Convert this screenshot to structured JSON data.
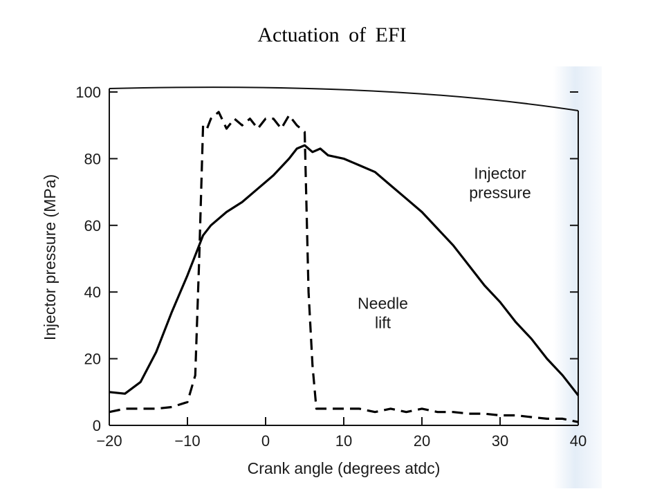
{
  "slide": {
    "title": "Actuation  of EFI"
  },
  "chart_data": {
    "type": "line",
    "title": "",
    "xlabel": "Crank angle (degrees atdc)",
    "ylabel": "Injector pressure (MPa)",
    "xlim": [
      -20,
      40
    ],
    "ylim": [
      0,
      100
    ],
    "x_ticks": [
      -20,
      -10,
      0,
      10,
      20,
      30,
      40
    ],
    "x_tick_labels": [
      "−20",
      "−10",
      "0",
      "10",
      "20",
      "30",
      "40"
    ],
    "y_ticks": [
      0,
      20,
      40,
      60,
      80,
      100
    ],
    "y_tick_labels": [
      "0",
      "20",
      "40",
      "60",
      "80",
      "100"
    ],
    "grid": false,
    "series": [
      {
        "name": "Injector pressure",
        "style": "solid",
        "color": "#000000",
        "x": [
          -20,
          -18,
          -16,
          -14,
          -12,
          -10,
          -8,
          -7,
          -5,
          -3,
          -1,
          1,
          3,
          4,
          5,
          6,
          7,
          8,
          10,
          12,
          14,
          16,
          18,
          20,
          22,
          24,
          26,
          28,
          30,
          32,
          34,
          36,
          38,
          40
        ],
        "y": [
          10,
          9.5,
          13,
          22,
          34,
          45,
          57,
          60,
          64,
          67,
          71,
          75,
          80,
          83,
          84,
          82,
          83,
          81,
          80,
          78,
          76,
          72,
          68,
          64,
          59,
          54,
          48,
          42,
          37,
          31,
          26,
          20,
          15,
          9
        ]
      },
      {
        "name": "Needle lift",
        "style": "dashed",
        "color": "#000000",
        "x": [
          -20,
          -18,
          -16,
          -14,
          -12,
          -10,
          -9,
          -8.5,
          -8,
          -7.5,
          -7,
          -6,
          -5,
          -4,
          -3,
          -2,
          -1,
          0,
          1,
          2,
          3,
          4,
          5,
          5.5,
          6,
          6.5,
          7,
          8,
          10,
          12,
          14,
          16,
          18,
          20,
          22,
          24,
          26,
          28,
          30,
          32,
          34,
          36,
          38,
          40
        ],
        "y": [
          4,
          5,
          5,
          5,
          5.5,
          7,
          15,
          50,
          90,
          89,
          92,
          94,
          89,
          92,
          90,
          92,
          89,
          92,
          92,
          89,
          93,
          90,
          88,
          40,
          18,
          5,
          5,
          5,
          5,
          5,
          4,
          5,
          4,
          5,
          4,
          4,
          3.5,
          3.5,
          3,
          3,
          2.5,
          2,
          2,
          1
        ]
      }
    ],
    "annotations": [
      {
        "text": [
          "Injector",
          "pressure"
        ],
        "x": 30,
        "y": 74
      },
      {
        "text": [
          "Needle",
          "lift"
        ],
        "x": 15,
        "y": 35
      }
    ]
  }
}
